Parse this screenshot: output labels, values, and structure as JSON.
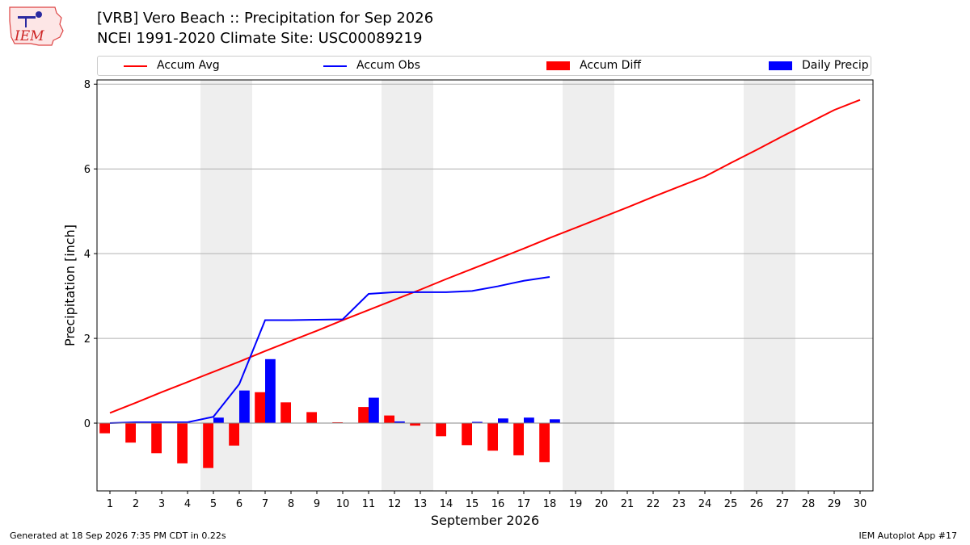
{
  "header": {
    "title_line1": "[VRB] Vero Beach :: Precipitation for Sep 2026",
    "title_line2": "NCEI 1991-2020 Climate Site: USC00089219",
    "logo_text": "IEM"
  },
  "legend": {
    "items": [
      {
        "label": "Accum Avg",
        "kind": "line",
        "color": "#ff0000"
      },
      {
        "label": "Accum Obs",
        "kind": "line",
        "color": "#0000ff"
      },
      {
        "label": "Accum Diff",
        "kind": "patch",
        "color": "#ff0000"
      },
      {
        "label": "Daily Precip",
        "kind": "patch",
        "color": "#0000ff"
      }
    ]
  },
  "footer": {
    "generated": "Generated at 18 Sep 2026 7:35 PM CDT in 0.22s",
    "app": "IEM Autoplot App #17"
  },
  "chart_data": {
    "type": "bar",
    "title": "[VRB] Vero Beach :: Precipitation for Sep 2026",
    "subtitle": "NCEI 1991-2020 Climate Site: USC00089219",
    "xlabel": "September 2026",
    "ylabel": "Precipitation [inch]",
    "x": [
      1,
      2,
      3,
      4,
      5,
      6,
      7,
      8,
      9,
      10,
      11,
      12,
      13,
      14,
      15,
      16,
      17,
      18,
      19,
      20,
      21,
      22,
      23,
      24,
      25,
      26,
      27,
      28,
      29,
      30
    ],
    "xlim": [
      0.5,
      30.5
    ],
    "ylim": [
      -1.6,
      8.1
    ],
    "yticks": [
      0,
      2,
      4,
      6,
      8
    ],
    "grid": "horizontal",
    "legend_position": "top",
    "weekend_shading": [
      [
        5,
        6
      ],
      [
        12,
        13
      ],
      [
        19,
        20
      ],
      [
        26,
        27
      ]
    ],
    "series": [
      {
        "name": "Accum Avg",
        "kind": "line",
        "color": "#ff0000",
        "x": [
          1,
          2,
          3,
          4,
          5,
          6,
          7,
          8,
          9,
          10,
          11,
          12,
          13,
          14,
          15,
          16,
          17,
          18,
          19,
          20,
          21,
          22,
          23,
          24,
          25,
          26,
          27,
          28,
          29,
          30
        ],
        "values": [
          0.24,
          0.48,
          0.73,
          0.97,
          1.21,
          1.45,
          1.7,
          1.94,
          2.18,
          2.43,
          2.67,
          2.91,
          3.15,
          3.4,
          3.64,
          3.88,
          4.12,
          4.37,
          4.61,
          4.85,
          5.09,
          5.34,
          5.58,
          5.82,
          6.14,
          6.45,
          6.77,
          7.08,
          7.39,
          7.63
        ]
      },
      {
        "name": "Accum Obs",
        "kind": "line",
        "color": "#0000ff",
        "x": [
          1,
          2,
          3,
          4,
          5,
          6,
          7,
          8,
          9,
          10,
          11,
          12,
          13,
          14,
          15,
          16,
          17,
          18
        ],
        "values": [
          0.0,
          0.02,
          0.02,
          0.02,
          0.15,
          0.92,
          2.43,
          2.43,
          2.44,
          2.45,
          3.05,
          3.09,
          3.09,
          3.09,
          3.12,
          3.23,
          3.36,
          3.45
        ]
      },
      {
        "name": "Accum Diff",
        "kind": "bar",
        "color": "#ff0000",
        "x": [
          1,
          2,
          3,
          4,
          5,
          6,
          7,
          8,
          9,
          10,
          11,
          12,
          13,
          14,
          15,
          16,
          17,
          18
        ],
        "values": [
          -0.24,
          -0.46,
          -0.71,
          -0.95,
          -1.06,
          -0.53,
          0.73,
          0.49,
          0.26,
          0.02,
          0.38,
          0.18,
          -0.06,
          -0.31,
          -0.52,
          -0.65,
          -0.76,
          -0.92
        ]
      },
      {
        "name": "Daily Precip",
        "kind": "bar",
        "color": "#0000ff",
        "x": [
          1,
          2,
          3,
          4,
          5,
          6,
          7,
          8,
          9,
          10,
          11,
          12,
          13,
          14,
          15,
          16,
          17,
          18
        ],
        "values": [
          0.0,
          0.02,
          0.0,
          0.0,
          0.13,
          0.77,
          1.51,
          0.0,
          0.01,
          0.01,
          0.6,
          0.04,
          0.0,
          0.0,
          0.03,
          0.11,
          0.13,
          0.09
        ]
      }
    ]
  }
}
